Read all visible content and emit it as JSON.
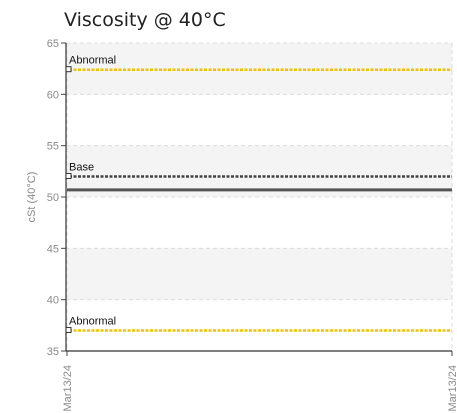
{
  "chart_data": {
    "type": "line",
    "title": "Viscosity @ 40°C",
    "ylabel": "cSt (40°C)",
    "xlabel": "",
    "ylim": [
      35,
      65
    ],
    "yticks": [
      35,
      40,
      45,
      50,
      55,
      60,
      65
    ],
    "x_categories": [
      "Mar13/24",
      "Mar13/24"
    ],
    "grid": true,
    "shaded_bands": [
      [
        40,
        45
      ],
      [
        50,
        55
      ],
      [
        60,
        65
      ]
    ],
    "series": [
      {
        "values": [
          50.7,
          50.7
        ],
        "color": "#555555"
      }
    ],
    "reference_lines": [
      {
        "label": "Abnormal",
        "value": 62.4,
        "color": "#f2c200"
      },
      {
        "label": "Base",
        "value": 52.0,
        "color": "#444444"
      },
      {
        "label": "Abnormal",
        "value": 37.0,
        "color": "#f2c200"
      }
    ]
  }
}
